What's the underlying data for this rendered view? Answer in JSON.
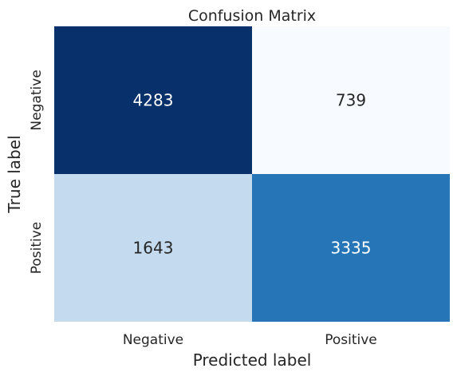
{
  "chart_data": {
    "type": "heatmap",
    "title": "Confusion Matrix",
    "xlabel": "Predicted label",
    "ylabel": "True label",
    "x_categories": [
      "Negative",
      "Positive"
    ],
    "y_categories": [
      "Negative",
      "Positive"
    ],
    "values": [
      [
        4283,
        739
      ],
      [
        1643,
        3335
      ]
    ],
    "colormap": "Blues",
    "colorbar": false,
    "grid": false
  }
}
